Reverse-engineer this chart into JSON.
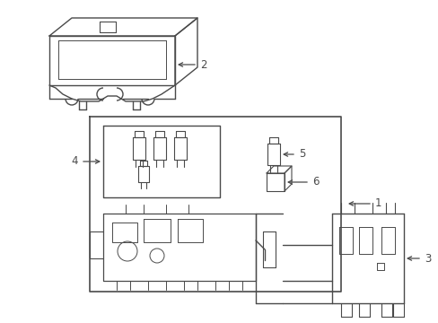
{
  "bg_color": "#ffffff",
  "line_color": "#4a4a4a",
  "fig_width": 4.89,
  "fig_height": 3.6,
  "dpi": 100
}
